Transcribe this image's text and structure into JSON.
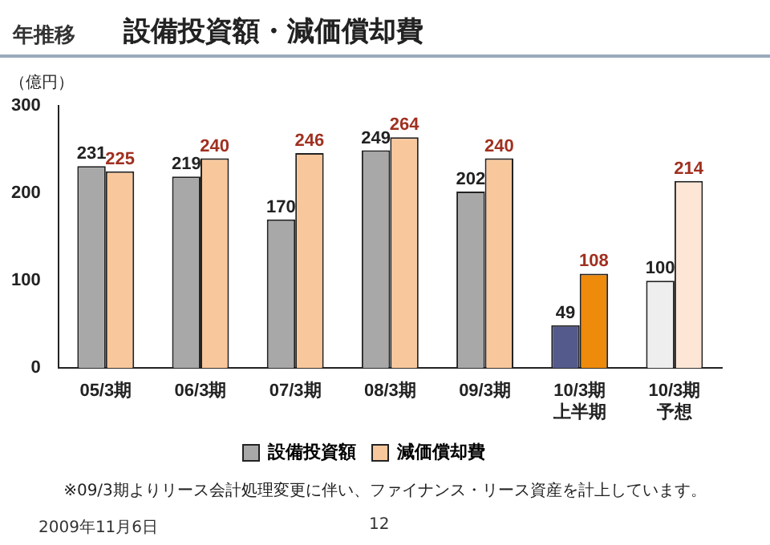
{
  "chart_data": {
    "type": "bar",
    "title": "設備投資額・減価償却費",
    "subtitle": "年推移",
    "ylabel": "（億円）",
    "categories": [
      "05/3期",
      "06/3期",
      "07/3期",
      "08/3期",
      "09/3期",
      "10/3期上半期",
      "10/3期予想"
    ],
    "series": [
      {
        "name": "設備投資額",
        "color": "#a8a8a8",
        "colors": [
          "#a8a8a8",
          "#a8a8a8",
          "#a8a8a8",
          "#a8a8a8",
          "#a8a8a8",
          "#555a8c",
          "#eeeeee"
        ],
        "values": [
          231,
          219,
          170,
          249,
          202,
          49,
          100
        ]
      },
      {
        "name": "減価償却費",
        "color": "#f8c89c",
        "colors": [
          "#f8c89c",
          "#f8c89c",
          "#f8c89c",
          "#f8c89c",
          "#f8c89c",
          "#ee8a0c",
          "#fde6d6"
        ],
        "values": [
          225,
          240,
          246,
          264,
          240,
          108,
          214
        ]
      }
    ],
    "ylim": [
      0,
      300
    ],
    "yticks": [
      0,
      100,
      200,
      300
    ],
    "grid": false,
    "legend": "bottom",
    "data_labels": true,
    "annotations": [
      "※09/3期よりリース会計処理変更に伴い、ファイナンス・リース資産を計上しています。",
      "2009年11月6日",
      "12"
    ]
  }
}
